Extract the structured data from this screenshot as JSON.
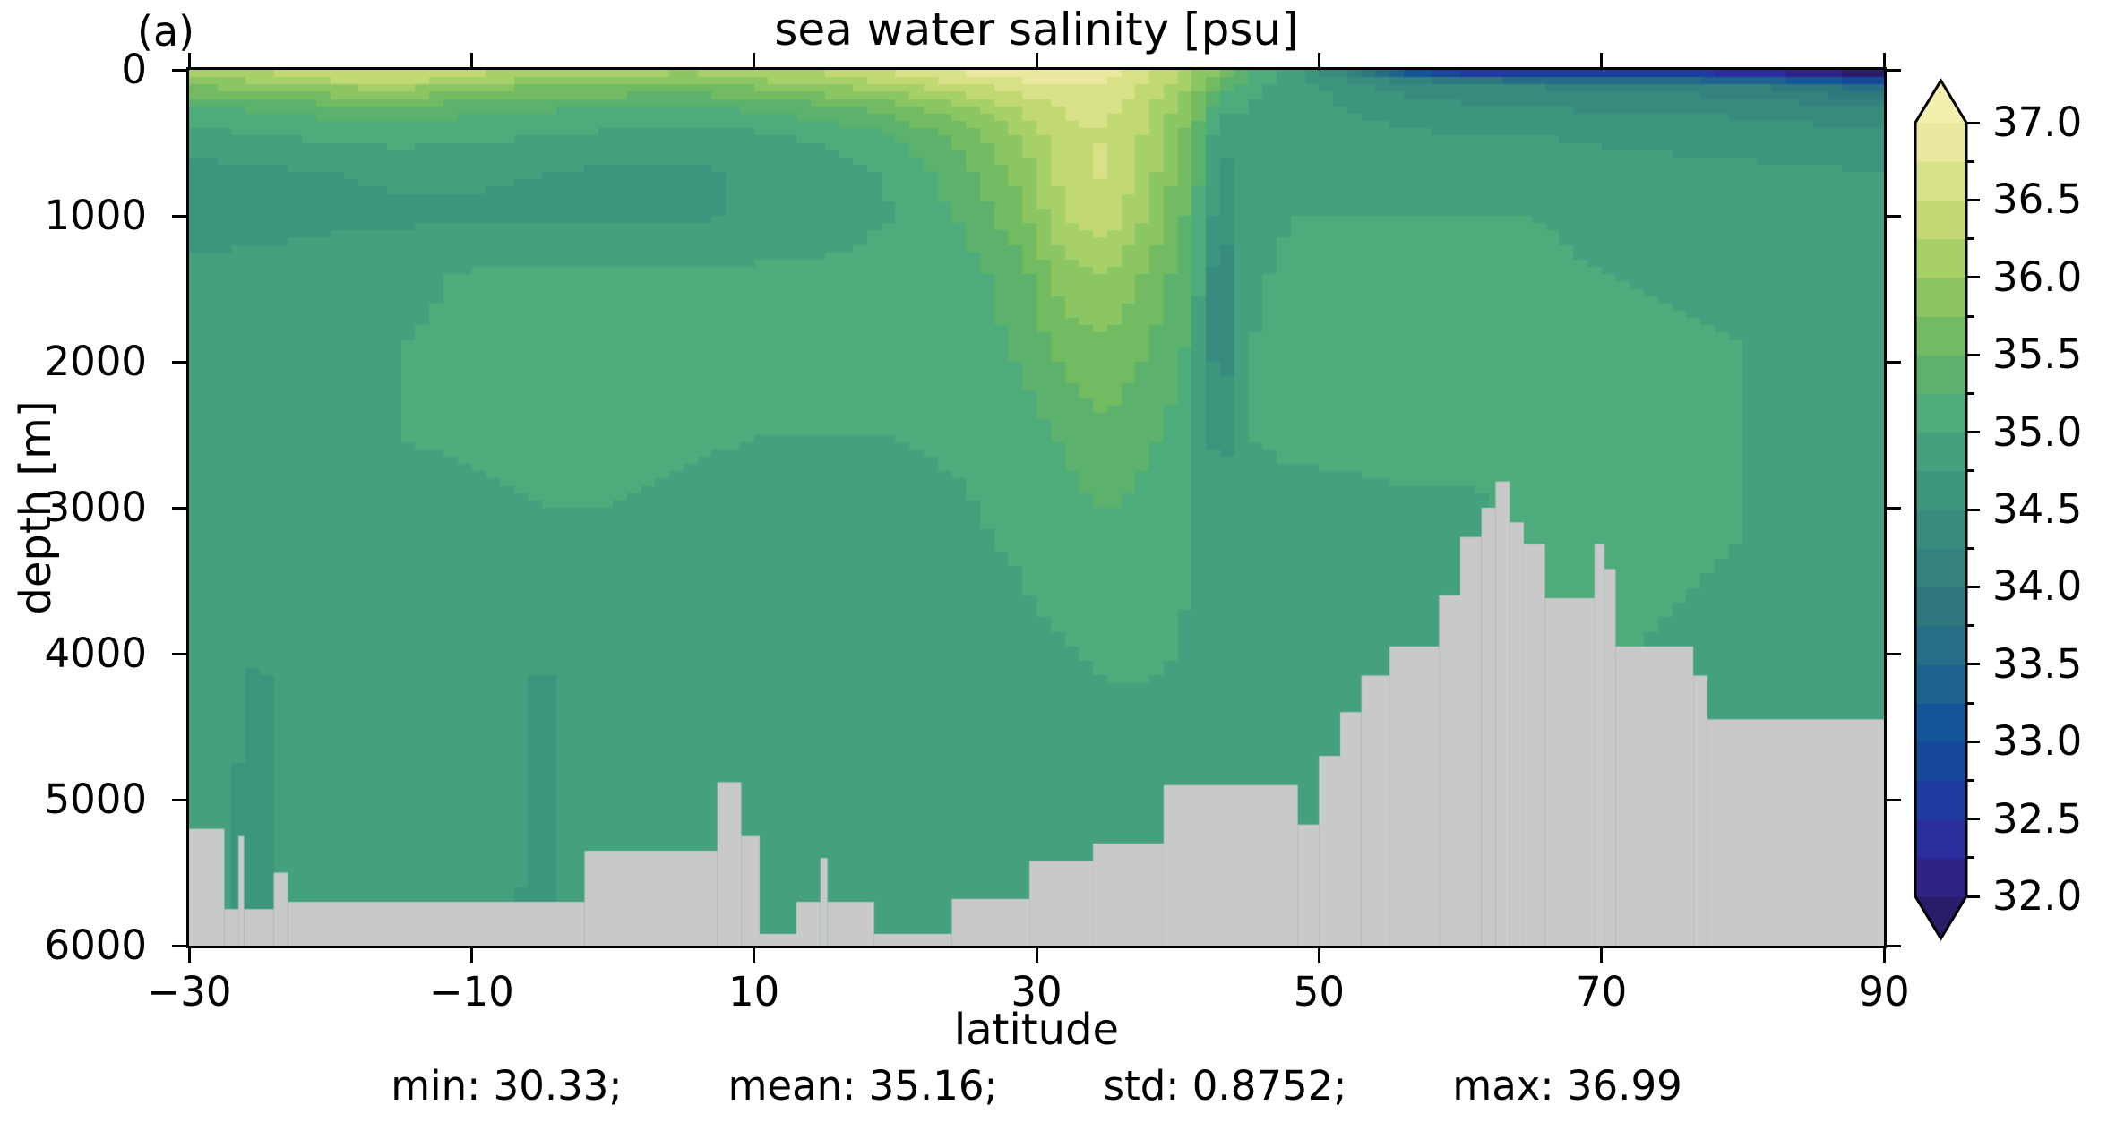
{
  "chart_data": {
    "type": "heatmap",
    "panel_label": "(a)",
    "title": "sea water salinity [psu]",
    "xlabel": "latitude",
    "ylabel": "depth [m]",
    "xlim": [
      -30,
      90
    ],
    "depth_range": [
      0,
      6000
    ],
    "grid": false,
    "x_ticks": [
      -30,
      -10,
      10,
      30,
      50,
      70,
      90
    ],
    "x_tick_labels": [
      "−30",
      "−10",
      "10",
      "30",
      "50",
      "70",
      "90"
    ],
    "y_ticks": [
      0,
      1000,
      2000,
      3000,
      4000,
      5000,
      6000
    ],
    "y_tick_labels": [
      "0",
      "1000",
      "2000",
      "3000",
      "4000",
      "5000",
      "6000"
    ],
    "stats": {
      "min": 30.33,
      "mean": 35.16,
      "std": 0.8752,
      "max": 36.99
    },
    "stats_parts": [
      "min: 30.33;",
      "mean: 35.16;",
      "std: 0.8752;",
      "max: 36.99"
    ],
    "colorbar": {
      "position": "right",
      "extend": "both",
      "level_min": 32.0,
      "level_max": 37.0,
      "band_step": 0.25,
      "major_tick_values": [
        37.0,
        36.5,
        36.0,
        35.5,
        35.0,
        34.5,
        34.0,
        33.5,
        33.0,
        32.5,
        32.0
      ],
      "major_tick_labels": [
        "37.0",
        "36.5",
        "36.0",
        "35.5",
        "35.0",
        "34.5",
        "34.0",
        "33.5",
        "33.0",
        "32.5",
        "32.0"
      ],
      "minor_tick_step": 0.25,
      "under_color": "#2B1C6B",
      "over_color": "#F3EFAE",
      "band_colors": [
        "#2E2387",
        "#2A2D9E",
        "#1F3AA0",
        "#16479B",
        "#125598",
        "#1D6390",
        "#266E87",
        "#2F787D",
        "#33827E",
        "#378C7E",
        "#3C967E",
        "#44A07D",
        "#4EAB7B",
        "#5CB26C",
        "#72BB63",
        "#8CC663",
        "#A8D068",
        "#C1D873",
        "#D8E187",
        "#E9E89E"
      ]
    },
    "field": {
      "lats": [
        -30,
        -25,
        -20,
        -15,
        -10,
        -5,
        0,
        5,
        10,
        15,
        20,
        25,
        29,
        32,
        35,
        38,
        41,
        43,
        45,
        48,
        52,
        56,
        60,
        65,
        70,
        80,
        90
      ],
      "depths": [
        0,
        50,
        120,
        250,
        450,
        700,
        1000,
        1400,
        1900,
        2500,
        3200,
        4200,
        6000
      ],
      "salinity": [
        [
          36.0,
          36.2,
          36.5,
          36.5,
          36.3,
          36.15,
          36.25,
          36.0,
          36.25,
          36.3,
          36.5,
          36.8,
          36.9,
          36.95,
          36.9,
          36.6,
          36.1,
          35.7,
          35.2,
          34.9,
          34.0,
          32.3,
          31.9,
          32.0,
          32.0,
          31.8,
          31.2
        ],
        [
          36.0,
          36.15,
          36.4,
          36.45,
          36.25,
          36.05,
          36.1,
          35.9,
          36.1,
          36.2,
          36.45,
          36.75,
          36.85,
          36.9,
          36.85,
          36.55,
          36.05,
          35.6,
          35.2,
          34.9,
          34.4,
          34.0,
          33.6,
          33.4,
          33.3,
          33.1,
          32.4
        ],
        [
          35.7,
          35.85,
          36.0,
          36.05,
          35.9,
          35.7,
          35.7,
          35.6,
          35.75,
          35.95,
          36.15,
          36.45,
          36.6,
          36.75,
          36.7,
          36.45,
          35.95,
          35.4,
          35.1,
          34.9,
          34.6,
          34.4,
          34.3,
          34.25,
          34.2,
          34.1,
          33.6
        ],
        [
          35.25,
          35.3,
          35.4,
          35.45,
          35.35,
          35.3,
          35.25,
          35.25,
          35.3,
          35.45,
          35.65,
          36.0,
          36.3,
          36.55,
          36.55,
          36.3,
          35.75,
          35.1,
          35.0,
          34.9,
          34.75,
          34.6,
          34.55,
          34.5,
          34.45,
          34.4,
          34.2
        ],
        [
          34.9,
          35.0,
          35.05,
          35.1,
          35.05,
          35.0,
          34.95,
          34.9,
          34.95,
          35.05,
          35.25,
          35.6,
          36.05,
          36.45,
          36.5,
          36.2,
          35.6,
          34.8,
          34.9,
          34.9,
          34.85,
          34.8,
          34.75,
          34.75,
          34.7,
          34.65,
          34.6
        ],
        [
          34.65,
          34.7,
          34.75,
          34.8,
          34.8,
          34.75,
          34.7,
          34.7,
          34.78,
          34.85,
          35.05,
          35.45,
          35.85,
          36.4,
          36.55,
          36.1,
          35.5,
          34.65,
          34.9,
          34.95,
          34.9,
          34.9,
          34.9,
          34.9,
          34.85,
          34.8,
          34.75
        ],
        [
          34.6,
          34.65,
          34.68,
          34.7,
          34.7,
          34.7,
          34.7,
          34.7,
          34.78,
          34.88,
          35.0,
          35.3,
          35.7,
          36.25,
          36.4,
          35.95,
          35.4,
          34.55,
          34.9,
          35.0,
          35.0,
          35.0,
          35.0,
          35.0,
          34.95,
          34.9,
          34.85
        ],
        [
          34.82,
          34.85,
          34.9,
          34.95,
          35.02,
          35.05,
          35.05,
          35.05,
          35.05,
          35.05,
          35.1,
          35.15,
          35.4,
          35.9,
          36.0,
          35.7,
          35.3,
          34.2,
          34.95,
          35.05,
          35.05,
          35.05,
          35.05,
          35.05,
          35.0,
          34.95,
          34.9
        ],
        [
          34.9,
          34.92,
          34.95,
          35.0,
          35.05,
          35.08,
          35.08,
          35.08,
          35.05,
          35.05,
          35.05,
          35.1,
          35.3,
          35.6,
          35.7,
          35.5,
          35.2,
          34.2,
          35.0,
          35.05,
          35.1,
          35.1,
          35.1,
          35.05,
          35.05,
          35.0,
          34.95
        ],
        [
          34.92,
          34.95,
          34.98,
          35.0,
          35.02,
          35.05,
          35.05,
          35.02,
          35.0,
          35.0,
          35.0,
          35.02,
          35.1,
          35.3,
          35.45,
          35.3,
          35.1,
          34.6,
          35.0,
          35.02,
          35.05,
          35.1,
          35.1,
          35.05,
          35.0,
          35.0,
          34.95
        ],
        [
          34.92,
          34.95,
          34.95,
          34.95,
          34.95,
          34.98,
          34.98,
          34.95,
          34.95,
          34.95,
          34.95,
          34.98,
          35.02,
          35.1,
          35.2,
          35.1,
          35.0,
          34.9,
          34.95,
          34.95,
          34.9,
          34.9,
          34.9,
          35.05,
          35.02,
          35.0,
          34.95
        ],
        [
          34.85,
          34.72,
          34.9,
          34.9,
          34.88,
          34.72,
          34.9,
          34.92,
          34.92,
          34.92,
          34.92,
          34.92,
          34.95,
          34.95,
          35.0,
          35.0,
          34.98,
          34.95,
          34.95,
          34.95,
          34.9,
          34.85,
          34.8,
          35.05,
          35.0,
          34.98,
          34.92
        ],
        [
          34.8,
          34.7,
          34.85,
          34.85,
          34.85,
          34.7,
          34.88,
          34.9,
          34.9,
          34.9,
          34.9,
          34.9,
          34.92,
          34.92,
          34.95,
          34.95,
          34.95,
          34.92,
          34.9,
          34.9,
          34.85,
          34.8,
          34.75,
          35.0,
          35.0,
          34.95,
          34.9
        ]
      ]
    },
    "bathymetry": {
      "color": "#C9C9C9",
      "segments": [
        [
          -30,
          -27.5,
          5200
        ],
        [
          -27.5,
          -26.5,
          5750
        ],
        [
          -26.5,
          -26.1,
          5250
        ],
        [
          -26.1,
          -24,
          5750
        ],
        [
          -24,
          -23,
          5500
        ],
        [
          -23,
          -2,
          5700
        ],
        [
          -2,
          7.4,
          5350
        ],
        [
          7.4,
          9.1,
          4880
        ],
        [
          9.1,
          10.4,
          5250
        ],
        [
          10.4,
          13,
          5920
        ],
        [
          13,
          14.7,
          5700
        ],
        [
          14.7,
          15.2,
          5400
        ],
        [
          15.2,
          18.5,
          5700
        ],
        [
          18.5,
          24,
          5920
        ],
        [
          24,
          29.5,
          5680
        ],
        [
          29.5,
          34,
          5420
        ],
        [
          34,
          39,
          5300
        ],
        [
          39,
          48.5,
          4900
        ],
        [
          48.5,
          50,
          5170
        ],
        [
          50,
          51.5,
          4700
        ],
        [
          51.5,
          53,
          4400
        ],
        [
          53,
          55,
          4150
        ],
        [
          55,
          58.5,
          3950
        ],
        [
          58.5,
          60,
          3600
        ],
        [
          60,
          61.5,
          3200
        ],
        [
          61.5,
          62.5,
          3000
        ],
        [
          62.5,
          63.5,
          2820
        ],
        [
          63.5,
          64.5,
          3100
        ],
        [
          64.5,
          66,
          3250
        ],
        [
          66,
          69.5,
          3620
        ],
        [
          69.5,
          70.2,
          3250
        ],
        [
          70.2,
          71,
          3420
        ],
        [
          71,
          76.5,
          3950
        ],
        [
          76.5,
          77.5,
          4150
        ],
        [
          77.5,
          90,
          4450
        ]
      ]
    }
  }
}
